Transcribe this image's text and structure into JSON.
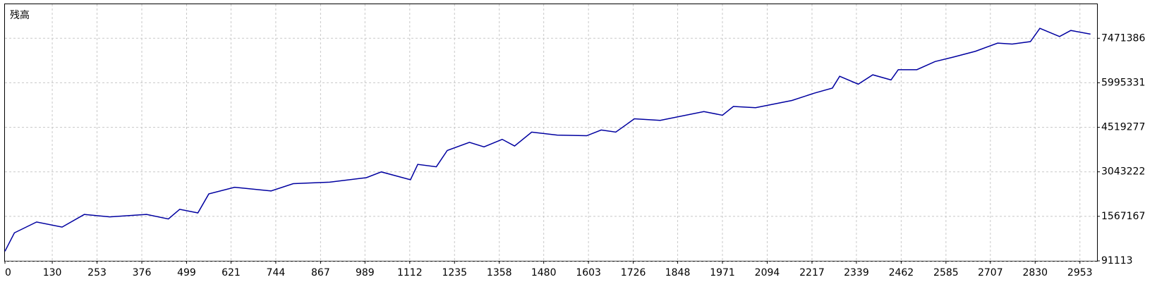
{
  "chart_data": {
    "type": "line",
    "title": "残高",
    "x": [
      0,
      26,
      87,
      157,
      218,
      288,
      389,
      449,
      480,
      530,
      560,
      631,
      731,
      792,
      892,
      993,
      1034,
      1114,
      1134,
      1185,
      1215,
      1276,
      1316,
      1366,
      1400,
      1447,
      1517,
      1598,
      1638,
      1678,
      1729,
      1800,
      1920,
      1971,
      2001,
      2062,
      2162,
      2223,
      2273,
      2293,
      2344,
      2384,
      2434,
      2454,
      2505,
      2555,
      2606,
      2666,
      2727,
      2767,
      2817,
      2843,
      2897,
      2928,
      2982
    ],
    "series": [
      {
        "name": "残高",
        "color": "#0000a0",
        "values": [
          408000,
          1020000,
          1380000,
          1210000,
          1630000,
          1550000,
          1630000,
          1480000,
          1800000,
          1680000,
          2310000,
          2530000,
          2410000,
          2650000,
          2700000,
          2850000,
          3040000,
          2780000,
          3290000,
          3210000,
          3750000,
          4020000,
          3870000,
          4120000,
          3900000,
          4360000,
          4260000,
          4240000,
          4430000,
          4360000,
          4800000,
          4750000,
          5040000,
          4920000,
          5210000,
          5170000,
          5410000,
          5650000,
          5820000,
          6210000,
          5950000,
          6260000,
          6090000,
          6430000,
          6430000,
          6700000,
          6850000,
          7040000,
          7310000,
          7280000,
          7360000,
          7800000,
          7530000,
          7730000,
          7610000
        ]
      }
    ],
    "xlim": [
      0,
      3000
    ],
    "xticks": [
      0,
      130,
      253,
      376,
      499,
      621,
      744,
      867,
      989,
      1112,
      1235,
      1358,
      1480,
      1603,
      1726,
      1848,
      1971,
      2094,
      2217,
      2339,
      2462,
      2585,
      2707,
      2830,
      2953
    ],
    "ylim": [
      91113,
      8600000
    ],
    "yticks": [
      91113,
      1567167,
      3043222,
      4519277,
      5995331,
      7471386
    ],
    "grid": true
  }
}
